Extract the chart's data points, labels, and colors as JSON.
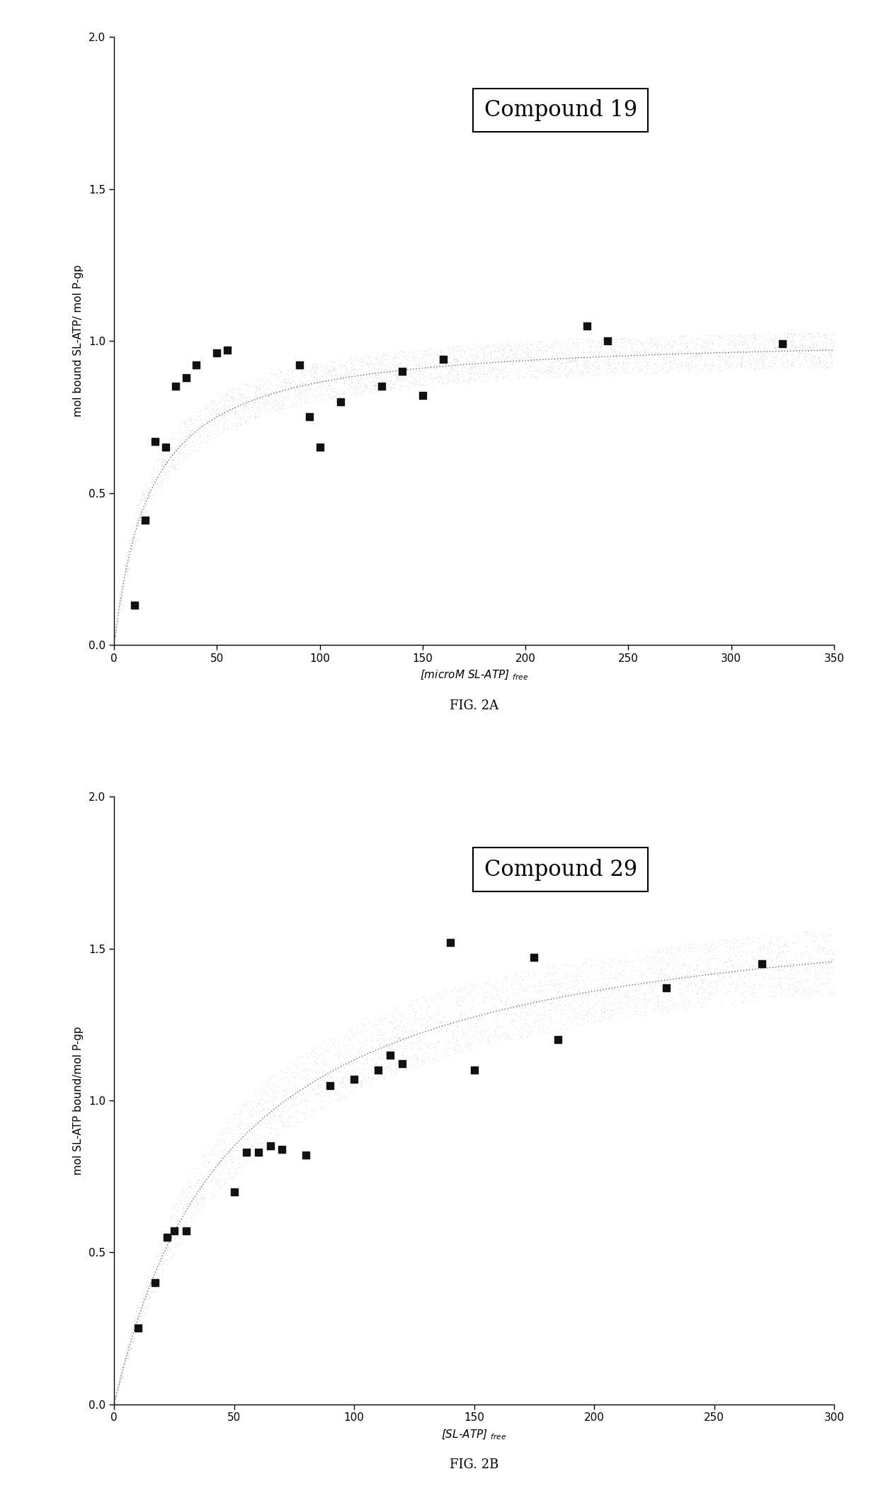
{
  "fig2a": {
    "title": "Compound 19",
    "xlabel": "[microM SL-ATP] $_{free}$",
    "ylabel": "mol bound SL-ATP/ mol P-gp",
    "xlim": [
      0,
      350
    ],
    "ylim": [
      0.0,
      2.0
    ],
    "xticks": [
      0,
      50,
      100,
      150,
      200,
      250,
      300,
      350
    ],
    "yticks": [
      0.0,
      0.5,
      1.0,
      1.5,
      2.0
    ],
    "scatter_x": [
      10,
      15,
      20,
      25,
      30,
      35,
      40,
      50,
      55,
      90,
      95,
      100,
      110,
      130,
      140,
      150,
      160,
      230,
      240,
      325
    ],
    "scatter_y": [
      0.13,
      0.41,
      0.67,
      0.65,
      0.85,
      0.88,
      0.92,
      0.96,
      0.97,
      0.92,
      0.75,
      0.65,
      0.8,
      0.85,
      0.9,
      0.82,
      0.94,
      1.05,
      1.0,
      0.99
    ],
    "Bmax": 1.02,
    "Kd": 18.0,
    "fig_label": "FIG. 2A"
  },
  "fig2b": {
    "title": "Compound 29",
    "xlabel": "[SL-ATP] $_{free}$",
    "ylabel": "mol SL-ATP bound/mol P-gp",
    "xlim": [
      0,
      300
    ],
    "ylim": [
      0.0,
      2.0
    ],
    "xticks": [
      0,
      50,
      100,
      150,
      200,
      250,
      300
    ],
    "yticks": [
      0.0,
      0.5,
      1.0,
      1.5,
      2.0
    ],
    "scatter_x": [
      10,
      17,
      22,
      25,
      30,
      50,
      55,
      60,
      65,
      70,
      80,
      90,
      100,
      110,
      115,
      120,
      140,
      150,
      175,
      185,
      230,
      270
    ],
    "scatter_y": [
      0.25,
      0.4,
      0.55,
      0.57,
      0.57,
      0.7,
      0.83,
      0.83,
      0.85,
      0.84,
      0.82,
      1.05,
      1.07,
      1.1,
      1.15,
      1.12,
      1.52,
      1.1,
      1.47,
      1.2,
      1.37,
      1.45
    ],
    "Bmax": 1.7,
    "Kd": 50.0,
    "fig_label": "FIG. 2B"
  },
  "background_color": "#ffffff",
  "marker_color": "#111111",
  "marker_size": 55,
  "title_fontsize": 22,
  "label_fontsize": 11,
  "tick_fontsize": 11,
  "fig_label_fontsize": 13
}
